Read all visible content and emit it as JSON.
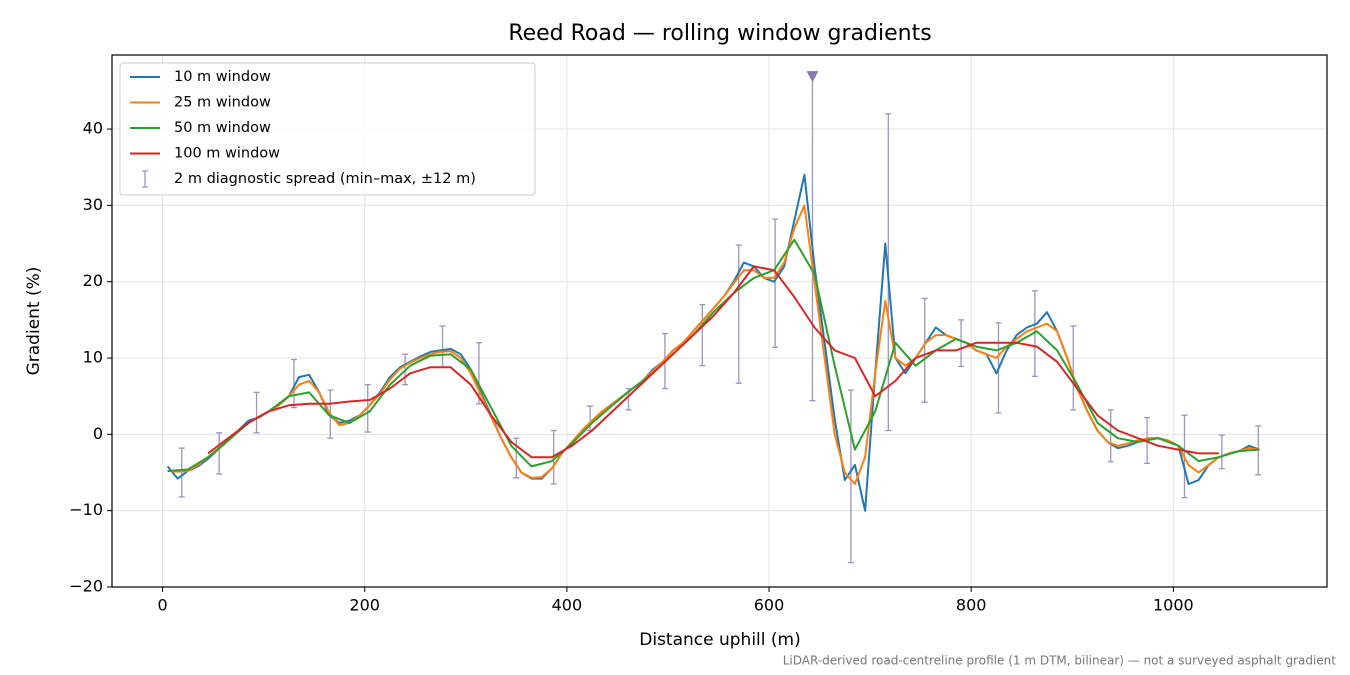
{
  "chart_data": {
    "type": "line",
    "title": "Reed Road — rolling window gradients",
    "xlabel": "Distance uphill (m)",
    "ylabel": "Gradient (%)",
    "footnote": "LiDAR-derived road-centreline profile (1 m DTM, bilinear) — not a surveyed asphalt gradient",
    "xlim": [
      -50,
      1152
    ],
    "ylim": [
      -20,
      49.7
    ],
    "xticks": [
      0,
      200,
      400,
      600,
      800,
      1000
    ],
    "yticks": [
      {
        "value": -20,
        "label": "−20"
      },
      {
        "value": -10,
        "label": "−10"
      },
      0,
      10,
      20,
      30,
      40
    ],
    "grid": true,
    "legend": "upper left",
    "series": [
      {
        "name": "10 m window",
        "color": "#1f77b4",
        "x": [
          5,
          15,
          25,
          35,
          45,
          55,
          65,
          75,
          85,
          95,
          105,
          115,
          125,
          135,
          145,
          155,
          165,
          175,
          185,
          195,
          205,
          215,
          225,
          235,
          245,
          255,
          265,
          275,
          285,
          295,
          305,
          315,
          325,
          335,
          345,
          355,
          365,
          375,
          385,
          395,
          405,
          415,
          425,
          435,
          445,
          455,
          465,
          475,
          485,
          495,
          505,
          515,
          525,
          535,
          545,
          555,
          565,
          575,
          585,
          595,
          605,
          615,
          625,
          635,
          645,
          655,
          665,
          675,
          685,
          695,
          705,
          715,
          725,
          735,
          745,
          755,
          765,
          775,
          785,
          795,
          805,
          815,
          825,
          835,
          845,
          855,
          865,
          875,
          885,
          895,
          905,
          915,
          925,
          935,
          945,
          955,
          965,
          975,
          985,
          995,
          1005,
          1015,
          1025,
          1035,
          1045,
          1055,
          1065,
          1075,
          1085
        ],
        "values": [
          -4.2,
          -5.8,
          -4.8,
          -4.2,
          -3.2,
          -2.0,
          -0.8,
          0.5,
          1.8,
          2.2,
          3.0,
          3.8,
          5.0,
          7.5,
          7.8,
          5.5,
          2.5,
          1.5,
          1.8,
          2.5,
          3.8,
          5.5,
          7.5,
          8.8,
          9.5,
          10.2,
          10.8,
          11.0,
          11.2,
          10.5,
          8.5,
          5.5,
          2.5,
          -0.5,
          -3.0,
          -5.0,
          -5.8,
          -5.8,
          -4.5,
          -2.5,
          -1.0,
          0.5,
          1.8,
          3.0,
          4.0,
          5.0,
          6.0,
          7.0,
          8.5,
          9.5,
          11,
          12,
          13.5,
          15,
          16.5,
          18,
          20,
          22.5,
          22,
          20.5,
          20,
          22,
          28,
          34,
          22,
          12,
          2,
          -6,
          -4,
          -10,
          8,
          25,
          10,
          8,
          10,
          12,
          14,
          13,
          12.5,
          12,
          11,
          10.5,
          8,
          11,
          13,
          14,
          14.5,
          16,
          13.5,
          10,
          6,
          3,
          0.5,
          -1,
          -1.8,
          -1.5,
          -1,
          -0.5,
          -0.5,
          -0.8,
          -1.5,
          -6.5,
          -6,
          -4,
          -3,
          -2.5,
          -2.2,
          -1.5,
          -2
        ]
      },
      {
        "name": "25 m window",
        "color": "#ff7f0e",
        "x": [
          5,
          15,
          25,
          35,
          45,
          55,
          65,
          75,
          85,
          95,
          105,
          115,
          125,
          135,
          145,
          155,
          165,
          175,
          185,
          195,
          205,
          215,
          225,
          235,
          245,
          255,
          265,
          275,
          285,
          295,
          305,
          315,
          325,
          335,
          345,
          355,
          365,
          375,
          385,
          395,
          405,
          415,
          425,
          435,
          445,
          455,
          465,
          475,
          485,
          495,
          505,
          515,
          525,
          535,
          545,
          555,
          565,
          575,
          585,
          595,
          605,
          615,
          625,
          635,
          645,
          655,
          665,
          675,
          685,
          695,
          705,
          715,
          725,
          735,
          745,
          755,
          765,
          775,
          785,
          795,
          805,
          815,
          825,
          835,
          845,
          855,
          865,
          875,
          885,
          895,
          905,
          915,
          925,
          935,
          945,
          955,
          965,
          975,
          985,
          995,
          1005,
          1015,
          1025,
          1035,
          1045,
          1055,
          1065,
          1075,
          1085
        ],
        "values": [
          -4.8,
          -4.9,
          -4.8,
          -4.0,
          -3.0,
          -2.0,
          -0.8,
          0.4,
          1.5,
          2.3,
          3.0,
          3.8,
          5.0,
          6.5,
          7.0,
          5.5,
          2.8,
          1.2,
          1.5,
          2.5,
          3.8,
          5.3,
          7.2,
          8.6,
          9.4,
          10.0,
          10.5,
          10.8,
          10.9,
          10.0,
          8.0,
          5.2,
          2.3,
          -0.5,
          -3.0,
          -5.0,
          -5.7,
          -5.6,
          -4.5,
          -2.5,
          -1.0,
          0.5,
          1.8,
          3.0,
          4.0,
          5.0,
          6.0,
          7.0,
          8.3,
          9.5,
          11,
          12,
          13.5,
          15,
          16.5,
          18,
          19.8,
          21.5,
          21.5,
          20.5,
          20.5,
          22.5,
          27,
          30,
          20,
          10,
          0,
          -5,
          -6.5,
          -3,
          8,
          17.5,
          10,
          9,
          10,
          12,
          13,
          13,
          12.5,
          12,
          11,
          10.5,
          10,
          11.5,
          12.5,
          13.5,
          14,
          14.5,
          13.5,
          10,
          6,
          3,
          0.5,
          -1,
          -1.5,
          -1.2,
          -0.8,
          -0.5,
          -0.5,
          -0.8,
          -1.5,
          -4,
          -5,
          -4,
          -3,
          -2.5,
          -2.2,
          -1.8,
          -2
        ]
      },
      {
        "name": "50 m window",
        "color": "#2ca02c",
        "x": [
          5,
          25,
          45,
          65,
          85,
          105,
          125,
          145,
          165,
          185,
          205,
          225,
          245,
          265,
          285,
          305,
          325,
          345,
          365,
          385,
          405,
          425,
          445,
          465,
          485,
          505,
          525,
          545,
          565,
          585,
          605,
          625,
          645,
          665,
          685,
          705,
          725,
          745,
          765,
          785,
          805,
          825,
          845,
          865,
          885,
          905,
          925,
          945,
          965,
          985,
          1005,
          1025,
          1045,
          1065,
          1085
        ],
        "values": [
          -4.8,
          -4.6,
          -3.0,
          -0.8,
          1.5,
          3.0,
          5.0,
          5.5,
          2.5,
          1.5,
          3.0,
          6.5,
          9.0,
          10.3,
          10.5,
          8.5,
          3.5,
          -1.5,
          -4.2,
          -3.5,
          -1.2,
          1.5,
          3.8,
          6.0,
          8.0,
          10.5,
          13.0,
          16.0,
          18.5,
          20.5,
          21.5,
          25.5,
          21.0,
          9.0,
          -2.0,
          3.0,
          12.0,
          9.0,
          11.0,
          12.5,
          11.5,
          11.0,
          12.0,
          13.5,
          11.0,
          6.5,
          1.5,
          -0.5,
          -1.0,
          -0.5,
          -1.5,
          -3.5,
          -3.0,
          -2.2,
          -2.0
        ]
      },
      {
        "name": "100 m window",
        "color": "#d62728",
        "x": [
          5,
          25,
          45,
          65,
          85,
          105,
          125,
          145,
          165,
          185,
          205,
          225,
          245,
          265,
          285,
          305,
          325,
          345,
          365,
          385,
          405,
          425,
          445,
          465,
          485,
          505,
          525,
          545,
          565,
          585,
          605,
          625,
          645,
          665,
          685,
          705,
          725,
          745,
          765,
          785,
          805,
          825,
          845,
          865,
          885,
          905,
          925,
          945,
          965,
          985,
          1005,
          1025,
          1045,
          1065,
          1085
        ],
        "values": [
          null,
          null,
          -2.5,
          -0.5,
          1.5,
          3.0,
          3.8,
          4.0,
          4.0,
          4.3,
          4.5,
          6.0,
          8.0,
          8.8,
          8.8,
          6.5,
          2.5,
          -1.0,
          -3.0,
          -3.0,
          -1.5,
          0.5,
          3.0,
          5.5,
          8.0,
          10.5,
          13.0,
          15.5,
          18.5,
          22.0,
          21.5,
          18.0,
          14.0,
          11.0,
          10.0,
          5.0,
          7.0,
          10.0,
          11.0,
          11.0,
          12.0,
          12.0,
          12.0,
          11.5,
          9.5,
          6.0,
          2.5,
          0.5,
          -0.5,
          -1.5,
          -2.0,
          -2.5,
          -2.5,
          null,
          null
        ]
      }
    ],
    "errorbars": {
      "name": "2 m diagnostic spread (min–max, ±12 m)",
      "color": "#9d93bd",
      "x": [
        19,
        56,
        93,
        130,
        166,
        203,
        240,
        277,
        313,
        350,
        387,
        423,
        461,
        497,
        534,
        570,
        606,
        643,
        681,
        718,
        754,
        790,
        827,
        863,
        901,
        938,
        974,
        1011,
        1048,
        1084
      ],
      "low": [
        -8.2,
        -5.2,
        0.2,
        3.5,
        -0.5,
        0.3,
        6.5,
        8.8,
        4.0,
        -5.7,
        -6.5,
        0.5,
        3.2,
        6.0,
        9.0,
        6.7,
        11.4,
        4.4,
        -16.8,
        0.5,
        4.2,
        8.9,
        2.8,
        7.6,
        3.2,
        -3.6,
        -3.8,
        -8.3,
        -4.5,
        -5.3
      ],
      "high": [
        -1.8,
        0.2,
        5.5,
        9.8,
        5.8,
        6.5,
        10.5,
        14.2,
        12.0,
        -0.5,
        0.5,
        3.7,
        6.0,
        13.2,
        17.0,
        24.8,
        28.2,
        46.8,
        5.8,
        42.0,
        17.8,
        15.0,
        14.6,
        18.8,
        14.2,
        3.2,
        2.2,
        2.5,
        -0.1,
        1.1
      ]
    },
    "clip_marker": {
      "x": 643,
      "y": 46.8,
      "color": "#8a7cae"
    }
  }
}
